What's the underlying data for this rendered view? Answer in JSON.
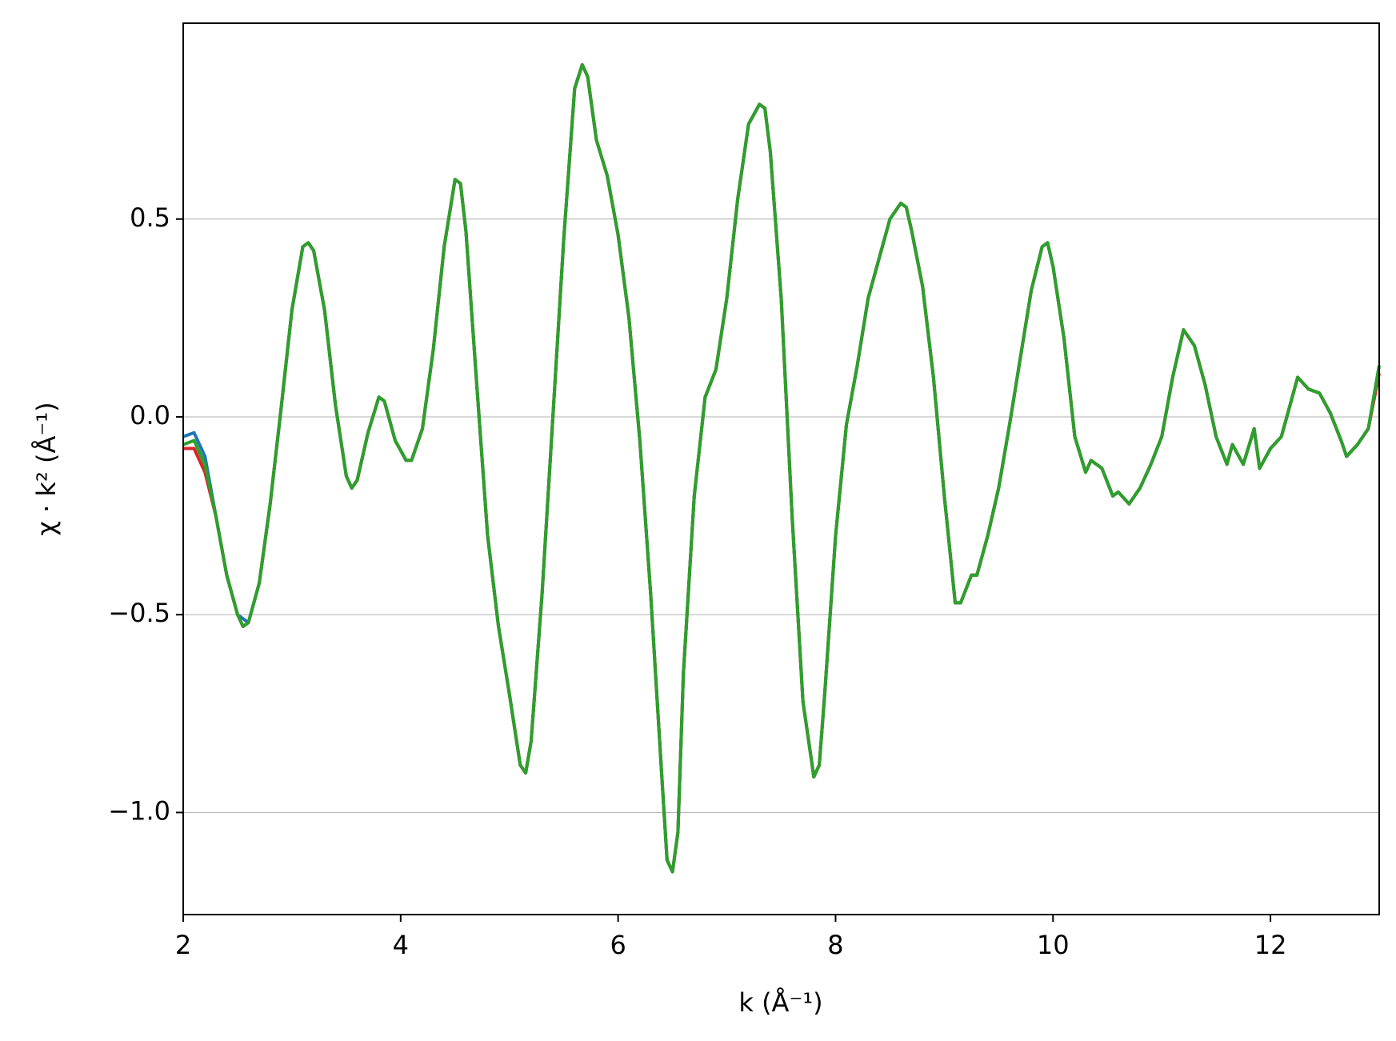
{
  "chart_data": {
    "type": "line",
    "xlabel": "k (Å⁻¹)",
    "ylabel": "χ · k² (Å⁻¹)",
    "x": [
      2.0,
      2.1,
      2.2,
      2.3,
      2.4,
      2.5,
      2.55,
      2.6,
      2.7,
      2.8,
      2.9,
      3.0,
      3.1,
      3.15,
      3.2,
      3.3,
      3.4,
      3.5,
      3.55,
      3.6,
      3.7,
      3.8,
      3.85,
      3.95,
      4.05,
      4.1,
      4.2,
      4.3,
      4.4,
      4.5,
      4.55,
      4.6,
      4.7,
      4.8,
      4.9,
      5.0,
      5.1,
      5.15,
      5.2,
      5.3,
      5.4,
      5.5,
      5.6,
      5.67,
      5.72,
      5.8,
      5.9,
      6.0,
      6.1,
      6.2,
      6.3,
      6.4,
      6.45,
      6.5,
      6.55,
      6.6,
      6.7,
      6.8,
      6.9,
      7.0,
      7.1,
      7.2,
      7.3,
      7.35,
      7.4,
      7.5,
      7.6,
      7.7,
      7.8,
      7.85,
      7.9,
      8.0,
      8.1,
      8.2,
      8.3,
      8.4,
      8.5,
      8.6,
      8.65,
      8.7,
      8.8,
      8.9,
      9.0,
      9.1,
      9.15,
      9.25,
      9.3,
      9.4,
      9.5,
      9.6,
      9.7,
      9.8,
      9.9,
      9.95,
      10.0,
      10.1,
      10.2,
      10.3,
      10.35,
      10.45,
      10.55,
      10.6,
      10.7,
      10.8,
      10.9,
      11.0,
      11.1,
      11.2,
      11.3,
      11.4,
      11.5,
      11.6,
      11.65,
      11.75,
      11.85,
      11.9,
      12.0,
      12.1,
      12.2,
      12.25,
      12.35,
      12.45,
      12.55,
      12.65,
      12.7,
      12.8,
      12.9,
      13.0
    ],
    "series": [
      {
        "color": "#1f77b4",
        "values": [
          -0.05,
          -0.04,
          -0.1,
          -0.25,
          -0.4,
          -0.5,
          -0.51,
          -0.52,
          -0.42,
          -0.22,
          0.02,
          0.27,
          0.43,
          0.44,
          0.42,
          0.27,
          0.03,
          -0.15,
          -0.18,
          -0.16,
          -0.04,
          0.05,
          0.04,
          -0.06,
          -0.11,
          -0.11,
          -0.03,
          0.17,
          0.43,
          0.6,
          0.59,
          0.47,
          0.08,
          -0.3,
          -0.53,
          -0.7,
          -0.88,
          -0.9,
          -0.82,
          -0.45,
          0.0,
          0.45,
          0.83,
          0.89,
          0.86,
          0.7,
          0.61,
          0.46,
          0.25,
          -0.06,
          -0.45,
          -0.9,
          -1.12,
          -1.15,
          -1.05,
          -0.65,
          -0.2,
          0.05,
          0.12,
          0.3,
          0.55,
          0.74,
          0.79,
          0.78,
          0.67,
          0.3,
          -0.25,
          -0.72,
          -0.91,
          -0.88,
          -0.7,
          -0.3,
          -0.02,
          0.13,
          0.3,
          0.4,
          0.5,
          0.54,
          0.53,
          0.47,
          0.33,
          0.1,
          -0.2,
          -0.47,
          -0.47,
          -0.4,
          -0.4,
          -0.3,
          -0.18,
          -0.02,
          0.15,
          0.32,
          0.43,
          0.44,
          0.38,
          0.2,
          -0.05,
          -0.14,
          -0.11,
          -0.13,
          -0.2,
          -0.19,
          -0.22,
          -0.18,
          -0.12,
          -0.05,
          0.1,
          0.22,
          0.18,
          0.08,
          -0.05,
          -0.12,
          -0.07,
          -0.12,
          -0.03,
          -0.13,
          -0.08,
          -0.05,
          0.05,
          0.1,
          0.07,
          0.06,
          0.01,
          -0.06,
          -0.1,
          -0.07,
          -0.03,
          0.13
        ]
      },
      {
        "color": "#d62728",
        "values": [
          -0.08,
          -0.08,
          -0.14,
          -0.25,
          -0.4,
          -0.5,
          -0.53,
          -0.52,
          -0.42,
          -0.22,
          0.02,
          0.27,
          0.43,
          0.44,
          0.42,
          0.27,
          0.03,
          -0.15,
          -0.18,
          -0.16,
          -0.04,
          0.05,
          0.04,
          -0.06,
          -0.11,
          -0.11,
          -0.03,
          0.17,
          0.43,
          0.6,
          0.59,
          0.47,
          0.08,
          -0.3,
          -0.53,
          -0.7,
          -0.88,
          -0.9,
          -0.82,
          -0.45,
          0.0,
          0.45,
          0.83,
          0.89,
          0.86,
          0.7,
          0.61,
          0.46,
          0.25,
          -0.06,
          -0.45,
          -0.9,
          -1.12,
          -1.15,
          -1.05,
          -0.65,
          -0.2,
          0.05,
          0.12,
          0.3,
          0.55,
          0.74,
          0.79,
          0.78,
          0.67,
          0.3,
          -0.25,
          -0.72,
          -0.91,
          -0.88,
          -0.7,
          -0.3,
          -0.02,
          0.13,
          0.3,
          0.4,
          0.5,
          0.54,
          0.53,
          0.47,
          0.33,
          0.1,
          -0.2,
          -0.47,
          -0.47,
          -0.4,
          -0.4,
          -0.3,
          -0.18,
          -0.02,
          0.15,
          0.32,
          0.43,
          0.44,
          0.38,
          0.2,
          -0.05,
          -0.14,
          -0.11,
          -0.13,
          -0.2,
          -0.19,
          -0.22,
          -0.18,
          -0.12,
          -0.05,
          0.1,
          0.22,
          0.18,
          0.08,
          -0.05,
          -0.12,
          -0.07,
          -0.12,
          -0.03,
          -0.13,
          -0.08,
          -0.05,
          0.05,
          0.1,
          0.07,
          0.06,
          0.01,
          -0.06,
          -0.1,
          -0.07,
          -0.03,
          0.11
        ]
      },
      {
        "color": "#2ca02c",
        "values": [
          -0.07,
          -0.06,
          -0.12,
          -0.25,
          -0.4,
          -0.5,
          -0.53,
          -0.52,
          -0.42,
          -0.22,
          0.02,
          0.27,
          0.43,
          0.44,
          0.42,
          0.27,
          0.03,
          -0.15,
          -0.18,
          -0.16,
          -0.04,
          0.05,
          0.04,
          -0.06,
          -0.11,
          -0.11,
          -0.03,
          0.17,
          0.43,
          0.6,
          0.59,
          0.47,
          0.08,
          -0.3,
          -0.53,
          -0.7,
          -0.88,
          -0.9,
          -0.82,
          -0.45,
          0.0,
          0.45,
          0.83,
          0.89,
          0.86,
          0.7,
          0.61,
          0.46,
          0.25,
          -0.06,
          -0.45,
          -0.9,
          -1.12,
          -1.15,
          -1.05,
          -0.65,
          -0.2,
          0.05,
          0.12,
          0.3,
          0.55,
          0.74,
          0.79,
          0.78,
          0.67,
          0.3,
          -0.25,
          -0.72,
          -0.91,
          -0.88,
          -0.7,
          -0.3,
          -0.02,
          0.13,
          0.3,
          0.4,
          0.5,
          0.54,
          0.53,
          0.47,
          0.33,
          0.1,
          -0.2,
          -0.47,
          -0.47,
          -0.4,
          -0.4,
          -0.3,
          -0.18,
          -0.02,
          0.15,
          0.32,
          0.43,
          0.44,
          0.38,
          0.2,
          -0.05,
          -0.14,
          -0.11,
          -0.13,
          -0.2,
          -0.19,
          -0.22,
          -0.18,
          -0.12,
          -0.05,
          0.1,
          0.22,
          0.18,
          0.08,
          -0.05,
          -0.12,
          -0.07,
          -0.12,
          -0.03,
          -0.13,
          -0.08,
          -0.05,
          0.05,
          0.1,
          0.07,
          0.06,
          0.01,
          -0.06,
          -0.1,
          -0.07,
          -0.03,
          0.13
        ]
      }
    ],
    "xlim": [
      2,
      13
    ],
    "xticks": [
      2,
      4,
      6,
      8,
      10,
      12
    ],
    "ylim": [
      -1.258,
      0.995
    ],
    "yticks": [
      {
        "value": -1.0,
        "label": "−1.0"
      },
      {
        "value": -0.5,
        "label": "−0.5"
      },
      {
        "value": 0.0,
        "label": "0.0"
      },
      {
        "value": 0.5,
        "label": "0.5"
      }
    ],
    "grid": "y"
  }
}
